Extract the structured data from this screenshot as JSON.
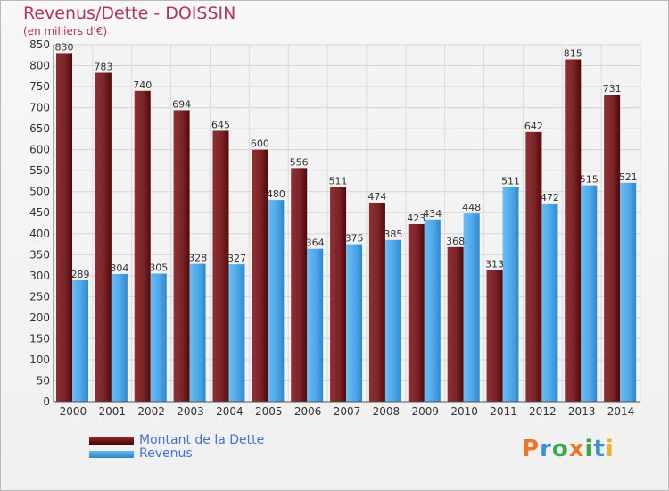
{
  "header": {
    "title": "Revenus/Dette - DOISSIN",
    "subtitle": "(en milliers d'€)"
  },
  "chart_data": {
    "type": "bar",
    "title": "Revenus/Dette - DOISSIN",
    "subtitle": "(en milliers d'€)",
    "xlabel": "",
    "ylabel": "",
    "categories": [
      "2000",
      "2001",
      "2002",
      "2003",
      "2004",
      "2005",
      "2006",
      "2007",
      "2008",
      "2009",
      "2010",
      "2011",
      "2012",
      "2013",
      "2014"
    ],
    "series": [
      {
        "name": "Montant de la Dette",
        "color": "#7a2528",
        "values": [
          830,
          783,
          740,
          694,
          645,
          600,
          556,
          511,
          474,
          423,
          368,
          313,
          642,
          815,
          731
        ]
      },
      {
        "name": "Revenus",
        "color": "#4da8e8",
        "values": [
          289,
          304,
          305,
          328,
          327,
          480,
          364,
          375,
          385,
          434,
          448,
          511,
          472,
          515,
          521
        ]
      }
    ],
    "ylim": [
      0,
      850
    ],
    "yticks": [
      0,
      50,
      100,
      150,
      200,
      250,
      300,
      350,
      400,
      450,
      500,
      550,
      600,
      650,
      700,
      750,
      800,
      850
    ],
    "grid": true,
    "data_labels": true,
    "legend_position": "bottom-left"
  },
  "legend": {
    "items": [
      {
        "label": "Montant de la Dette"
      },
      {
        "label": "Revenus"
      }
    ]
  },
  "logo": {
    "letters": [
      "P",
      "r",
      "o",
      "x",
      "i",
      "t",
      "i"
    ],
    "colors": [
      "#e8782a",
      "#3a8fd6",
      "#3aa84a",
      "#e8782a",
      "#3aa84a",
      "#3a8fd6",
      "#e8b42a"
    ]
  }
}
